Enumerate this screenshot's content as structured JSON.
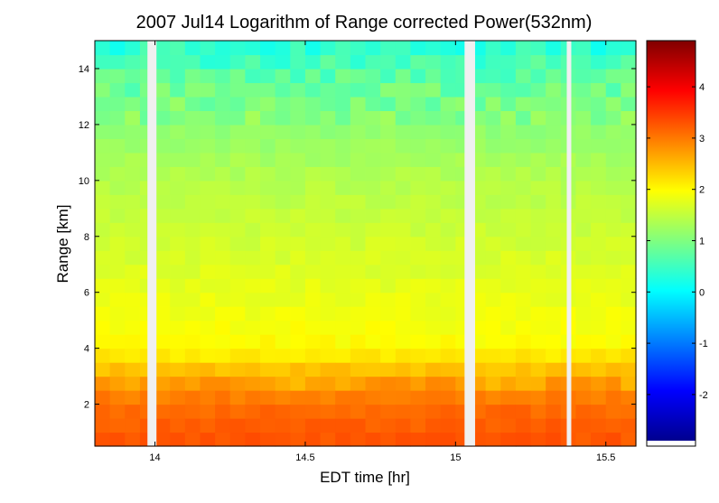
{
  "chart_data": {
    "type": "heatmap",
    "title": "2007 Jul14  Logarithm of Range corrected Power(532nm)",
    "xlabel": "EDT time [hr]",
    "ylabel": "Range [km]",
    "xlim": [
      13.8,
      15.6
    ],
    "ylim": [
      0.5,
      15.0
    ],
    "x_ticks": [
      {
        "value": 14.0,
        "label": "14"
      },
      {
        "value": 14.5,
        "label": "14.5"
      },
      {
        "value": 15.0,
        "label": "15"
      },
      {
        "value": 15.5,
        "label": "15.5"
      }
    ],
    "y_ticks": [
      {
        "value": 2,
        "label": "2"
      },
      {
        "value": 4,
        "label": "4"
      },
      {
        "value": 6,
        "label": "6"
      },
      {
        "value": 8,
        "label": "8"
      },
      {
        "value": 10,
        "label": "10"
      },
      {
        "value": 12,
        "label": "12"
      },
      {
        "value": 14,
        "label": "14"
      }
    ],
    "colorbar": {
      "colormap": "jet",
      "clim": [
        -2.9,
        4.9
      ],
      "ticks": [
        {
          "value": -2,
          "label": "-2"
        },
        {
          "value": -1,
          "label": "-1"
        },
        {
          "value": 0,
          "label": "0"
        },
        {
          "value": 1,
          "label": "1"
        },
        {
          "value": 2,
          "label": "2"
        },
        {
          "value": 3,
          "label": "3"
        },
        {
          "value": 4,
          "label": "4"
        }
      ]
    },
    "no_data_gaps_hr": [
      [
        13.975,
        14.005
      ],
      [
        15.03,
        15.065
      ],
      [
        15.37,
        15.385
      ]
    ],
    "boundary_layer_top_km": 2.8,
    "value_profile": [
      {
        "range_km": 0.5,
        "value": 3.3
      },
      {
        "range_km": 2.0,
        "value": 3.1
      },
      {
        "range_km": 2.8,
        "value": 2.7
      },
      {
        "range_km": 4.0,
        "value": 2.0
      },
      {
        "range_km": 6.0,
        "value": 1.8
      },
      {
        "range_km": 8.0,
        "value": 1.6
      },
      {
        "range_km": 10.0,
        "value": 1.4
      },
      {
        "range_km": 12.0,
        "value": 1.1
      },
      {
        "range_km": 13.5,
        "value": 0.8
      },
      {
        "range_km": 15.0,
        "value": 0.3
      }
    ]
  }
}
